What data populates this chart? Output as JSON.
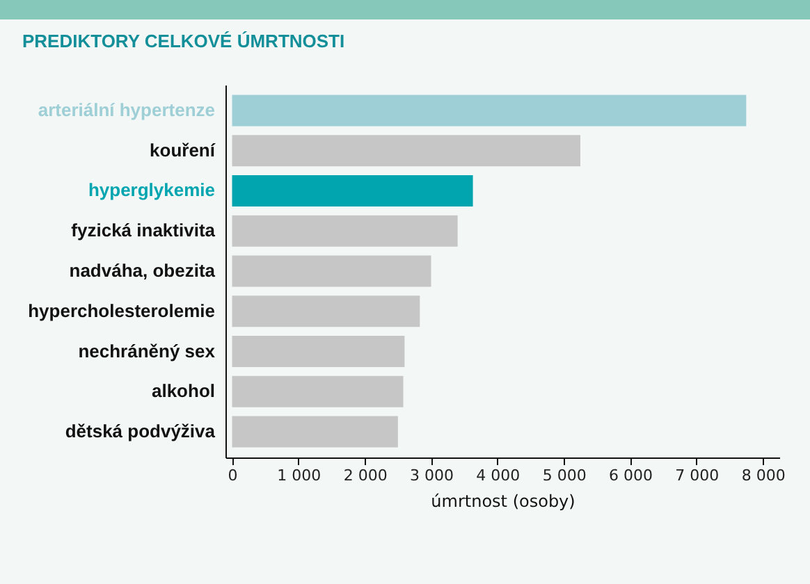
{
  "chart_data": {
    "type": "bar",
    "orientation": "horizontal",
    "title": "PREDIKTORY CELKOVÉ ÚMRTNOSTI",
    "xlabel": "úmrtnost (osoby)",
    "categories": [
      "arteriální hypertenze",
      "kouření",
      "hyperglykemie",
      "fyzická inaktivita",
      "nadváha, obezita",
      "hypercholesterolemie",
      "nechráněný sex",
      "alkohol",
      "dětská podvýživa"
    ],
    "values": [
      7750,
      5250,
      3630,
      3400,
      3000,
      2830,
      2600,
      2580,
      2500
    ],
    "colors": [
      "#9ecfd6",
      "#c6c6c6",
      "#00a5b0",
      "#c6c6c6",
      "#c6c6c6",
      "#c6c6c6",
      "#c6c6c6",
      "#c6c6c6",
      "#c6c6c6"
    ],
    "xlim": [
      -100,
      8250
    ],
    "xticks": [
      0,
      {
        "value": 1000,
        "label": "1 000"
      },
      {
        "value": 2000,
        "label": "2 000"
      },
      {
        "value": 3000,
        "label": "3 000"
      },
      {
        "value": 4000,
        "label": "4 000"
      },
      {
        "value": 5000,
        "label": "5 000"
      },
      {
        "value": 6000,
        "label": "6 000"
      },
      {
        "value": 7000,
        "label": "7 000"
      },
      {
        "value": 8000,
        "label": "8 000"
      }
    ],
    "grid": false
  }
}
